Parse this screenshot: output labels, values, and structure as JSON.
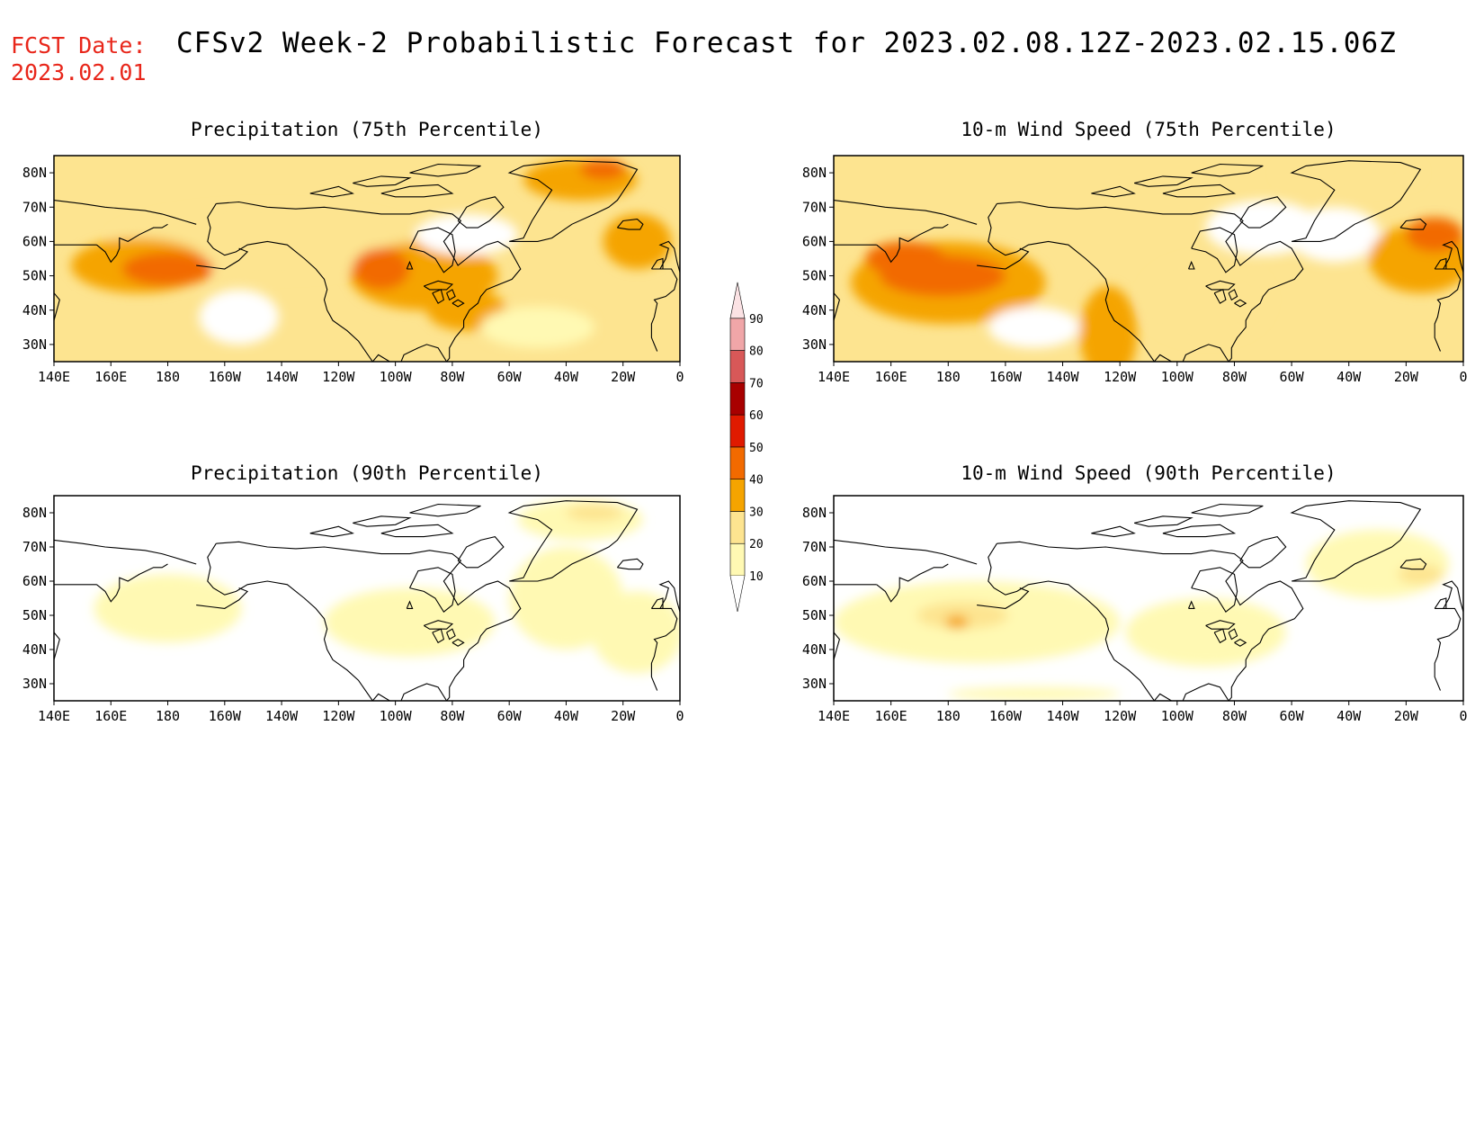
{
  "header": {
    "fcst_label": "FCST Date:",
    "fcst_date": "2023.02.01",
    "title": "CFSv2 Week-2 Probabilistic Forecast for 2023.02.08.12Z-2023.02.15.06Z"
  },
  "panels": [
    {
      "id": "precip75",
      "title": "Precipitation (75th Percentile)",
      "blobs": [
        {
          "lon": 215,
          "lat": 60,
          "rx": 55,
          "ry": 10,
          "level": 20
        },
        {
          "lon": 170,
          "lat": 53,
          "rx": 24,
          "ry": 8,
          "level": 30
        },
        {
          "lon": 180,
          "lat": 52,
          "rx": 16,
          "ry": 5,
          "level": 40
        },
        {
          "lon": 205,
          "lat": 38,
          "rx": 14,
          "ry": 8,
          "level": 0
        },
        {
          "lon": 270,
          "lat": 50,
          "rx": 26,
          "ry": 10,
          "level": 30
        },
        {
          "lon": 255,
          "lat": 52,
          "rx": 10,
          "ry": 6,
          "level": 40
        },
        {
          "lon": 325,
          "lat": 78,
          "rx": 20,
          "ry": 6,
          "level": 30
        },
        {
          "lon": 333,
          "lat": 81,
          "rx": 8,
          "ry": 3,
          "level": 40
        },
        {
          "lon": 345,
          "lat": 60,
          "rx": 12,
          "ry": 8,
          "level": 30
        },
        {
          "lon": 285,
          "lat": 40,
          "rx": 14,
          "ry": 6,
          "level": 30
        },
        {
          "lon": 285,
          "lat": 62,
          "rx": 18,
          "ry": 6,
          "level": 0
        },
        {
          "lon": 310,
          "lat": 35,
          "rx": 20,
          "ry": 6,
          "level": 10
        }
      ]
    },
    {
      "id": "wind75",
      "title": "10-m Wind Speed (75th Percentile)",
      "blobs": [
        {
          "lon": 180,
          "lat": 48,
          "rx": 34,
          "ry": 12,
          "level": 30
        },
        {
          "lon": 178,
          "lat": 50,
          "rx": 22,
          "ry": 6,
          "level": 40
        },
        {
          "lon": 165,
          "lat": 55,
          "rx": 14,
          "ry": 5,
          "level": 40
        },
        {
          "lon": 236,
          "lat": 33,
          "rx": 10,
          "ry": 14,
          "level": 30
        },
        {
          "lon": 270,
          "lat": 43,
          "rx": 22,
          "ry": 12,
          "level": 20
        },
        {
          "lon": 315,
          "lat": 62,
          "rx": 16,
          "ry": 8,
          "level": 0
        },
        {
          "lon": 345,
          "lat": 55,
          "rx": 18,
          "ry": 10,
          "level": 30
        },
        {
          "lon": 350,
          "lat": 62,
          "rx": 10,
          "ry": 5,
          "level": 40
        },
        {
          "lon": 290,
          "lat": 64,
          "rx": 20,
          "ry": 8,
          "level": 0
        },
        {
          "lon": 210,
          "lat": 35,
          "rx": 16,
          "ry": 6,
          "level": 0
        },
        {
          "lon": 320,
          "lat": 80,
          "rx": 25,
          "ry": 5,
          "level": 20
        }
      ]
    },
    {
      "id": "precip90",
      "title": "Precipitation (90th Percentile)",
      "blobs": [
        {
          "lon": 180,
          "lat": 52,
          "rx": 26,
          "ry": 10,
          "level": 10
        },
        {
          "lon": 265,
          "lat": 48,
          "rx": 30,
          "ry": 10,
          "level": 10
        },
        {
          "lon": 325,
          "lat": 78,
          "rx": 22,
          "ry": 6,
          "level": 10
        },
        {
          "lon": 330,
          "lat": 80,
          "rx": 10,
          "ry": 2.5,
          "level": 20
        },
        {
          "lon": 320,
          "lat": 55,
          "rx": 20,
          "ry": 15,
          "level": 10
        },
        {
          "lon": 345,
          "lat": 45,
          "rx": 16,
          "ry": 12,
          "level": 10
        }
      ]
    },
    {
      "id": "wind90",
      "title": "10-m Wind Speed (90th Percentile)",
      "blobs": [
        {
          "lon": 190,
          "lat": 48,
          "rx": 50,
          "ry": 12,
          "level": 10
        },
        {
          "lon": 185,
          "lat": 50,
          "rx": 16,
          "ry": 4,
          "level": 20
        },
        {
          "lon": 183,
          "lat": 48,
          "rx": 4,
          "ry": 2,
          "level": 30
        },
        {
          "lon": 270,
          "lat": 45,
          "rx": 28,
          "ry": 10,
          "level": 10
        },
        {
          "lon": 330,
          "lat": 65,
          "rx": 25,
          "ry": 10,
          "level": 10
        },
        {
          "lon": 345,
          "lat": 62,
          "rx": 8,
          "ry": 3,
          "level": 20
        },
        {
          "lon": 210,
          "lat": 27,
          "rx": 30,
          "ry": 2,
          "level": 10
        }
      ]
    }
  ],
  "axes": {
    "lon_ticks": [
      "140E",
      "160E",
      "180",
      "160W",
      "140W",
      "120W",
      "100W",
      "80W",
      "60W",
      "40W",
      "20W",
      "0"
    ],
    "lat_ticks": [
      "80N",
      "70N",
      "60N",
      "50N",
      "40N",
      "30N"
    ],
    "lon_range": [
      140,
      360
    ],
    "lat_range": [
      25,
      85
    ]
  },
  "colorbar": {
    "levels": [
      "10",
      "20",
      "30",
      "40",
      "50",
      "60",
      "70",
      "80",
      "90"
    ],
    "colors": [
      "#ffffff",
      "#fff9b3",
      "#fde490",
      "#f5a400",
      "#f26a00",
      "#e01a00",
      "#a80000",
      "#d85858",
      "#f0a6a8",
      "#fbe2e4"
    ]
  }
}
